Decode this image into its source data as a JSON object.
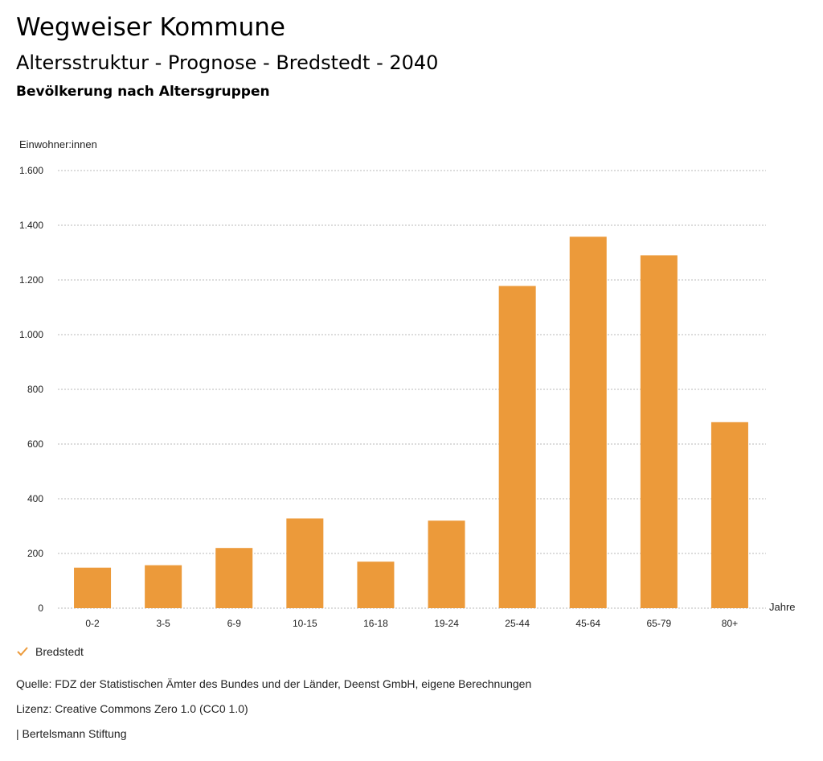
{
  "header": {
    "title": "Wegweiser Kommune",
    "subtitle": "Altersstruktur - Prognose - Bredstedt - 2040",
    "subsubtitle": "Bevölkerung nach Altersgruppen"
  },
  "chart_data": {
    "type": "bar",
    "title": "Bevölkerung nach Altersgruppen",
    "ylabel": "Einwohner:innen",
    "xlabel": "Jahre",
    "ylim": [
      0,
      1600
    ],
    "yticks": [
      0,
      200,
      400,
      600,
      800,
      1000,
      1200,
      1400,
      1600
    ],
    "ytick_labels": [
      "0",
      "200",
      "400",
      "600",
      "800",
      "1.000",
      "1.200",
      "1.400",
      "1.600"
    ],
    "grid": true,
    "categories": [
      "0-2",
      "3-5",
      "6-9",
      "10-15",
      "16-18",
      "19-24",
      "25-44",
      "45-64",
      "65-79",
      "80+"
    ],
    "series": [
      {
        "name": "Bredstedt",
        "color": "#ec9a3a",
        "values": [
          148,
          157,
          220,
          328,
          170,
          320,
          1178,
          1358,
          1290,
          680
        ]
      }
    ],
    "legend_position": "bottom-left"
  },
  "legend": {
    "items": [
      {
        "label": "Bredstedt",
        "color": "#ec9a3a"
      }
    ]
  },
  "footer": {
    "source": "Quelle: FDZ der Statistischen Ämter des Bundes und der Länder, Deenst GmbH, eigene Berechnungen",
    "license": "Lizenz: Creative Commons Zero 1.0 (CC0 1.0)",
    "publisher": "| Bertelsmann Stiftung"
  }
}
